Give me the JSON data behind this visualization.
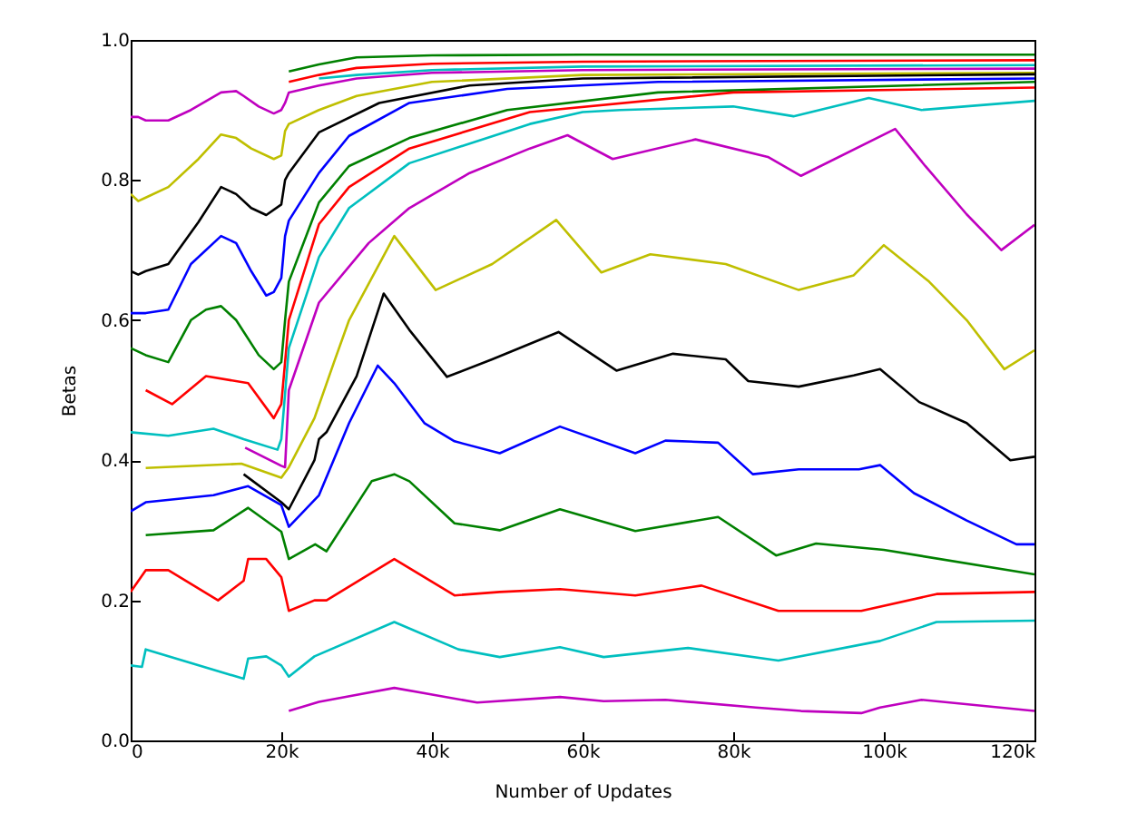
{
  "chart_data": {
    "type": "line",
    "xlabel": "Number of Updates",
    "ylabel": "Betas",
    "xlim": [
      0,
      120000
    ],
    "ylim": [
      0,
      1
    ],
    "xticks": [
      {
        "value": 0,
        "label": "0"
      },
      {
        "value": 20000,
        "label": "20k"
      },
      {
        "value": 40000,
        "label": "40k"
      },
      {
        "value": 60000,
        "label": "60k"
      },
      {
        "value": 80000,
        "label": "80k"
      },
      {
        "value": 100000,
        "label": "100k"
      },
      {
        "value": 120000,
        "label": "120k"
      }
    ],
    "yticks": [
      {
        "value": 0,
        "label": "0.0"
      },
      {
        "value": 0.2,
        "label": "0.2"
      },
      {
        "value": 0.4,
        "label": "0.4"
      },
      {
        "value": 0.6,
        "label": "0.6"
      },
      {
        "value": 0.8,
        "label": "0.8"
      },
      {
        "value": 1,
        "label": "1.0"
      }
    ],
    "grid": false,
    "legend": false,
    "series": [
      {
        "color": "#008000",
        "x": [
          21000,
          25000,
          30000,
          40000,
          60000,
          120000
        ],
        "values": [
          0.955,
          0.965,
          0.975,
          0.978,
          0.979,
          0.979
        ]
      },
      {
        "color": "#ff0000",
        "x": [
          21000,
          25000,
          30000,
          40000,
          60000,
          120000
        ],
        "values": [
          0.94,
          0.95,
          0.96,
          0.966,
          0.969,
          0.971
        ]
      },
      {
        "color": "#00bfbf",
        "x": [
          25000,
          30000,
          40000,
          60000,
          120000
        ],
        "values": [
          0.945,
          0.95,
          0.957,
          0.962,
          0.964
        ]
      },
      {
        "color": "#bf00bf",
        "x": [
          0,
          1000,
          2000,
          5000,
          8000,
          12000,
          14000,
          15000,
          17000,
          19000,
          20000,
          20500,
          21000,
          25000,
          30000,
          40000,
          60000,
          120000
        ],
        "values": [
          0.89,
          0.89,
          0.885,
          0.885,
          0.9,
          0.925,
          0.927,
          0.92,
          0.905,
          0.895,
          0.9,
          0.91,
          0.925,
          0.935,
          0.945,
          0.953,
          0.957,
          0.959
        ]
      },
      {
        "color": "#bfbf00",
        "x": [
          0,
          1000,
          2000,
          5000,
          9000,
          12000,
          14000,
          16000,
          19000,
          20000,
          20500,
          21000,
          25000,
          30000,
          40000,
          60000,
          120000
        ],
        "values": [
          0.78,
          0.77,
          0.775,
          0.79,
          0.83,
          0.865,
          0.86,
          0.845,
          0.83,
          0.835,
          0.87,
          0.88,
          0.9,
          0.92,
          0.94,
          0.95,
          0.953
        ]
      },
      {
        "color": "#000000",
        "x": [
          0,
          1000,
          2000,
          5000,
          9000,
          12000,
          14000,
          16000,
          18000,
          20000,
          20500,
          21000,
          25000,
          33000,
          45000,
          60000,
          120000
        ],
        "values": [
          0.67,
          0.665,
          0.67,
          0.68,
          0.74,
          0.79,
          0.78,
          0.76,
          0.75,
          0.765,
          0.8,
          0.81,
          0.868,
          0.91,
          0.935,
          0.945,
          0.951
        ]
      },
      {
        "color": "#0000ff",
        "x": [
          0,
          2000,
          5000,
          8000,
          12000,
          14000,
          16000,
          18000,
          19000,
          20000,
          20500,
          21000,
          25000,
          29000,
          37000,
          50000,
          70000,
          120000
        ],
        "values": [
          0.61,
          0.61,
          0.615,
          0.68,
          0.72,
          0.71,
          0.67,
          0.635,
          0.64,
          0.66,
          0.72,
          0.742,
          0.81,
          0.863,
          0.91,
          0.93,
          0.94,
          0.945
        ]
      },
      {
        "color": "#008000",
        "x": [
          0,
          2000,
          5000,
          8000,
          10000,
          12000,
          14000,
          17000,
          19000,
          20000,
          20500,
          21000,
          25000,
          29000,
          37000,
          50000,
          70000,
          120000
        ],
        "values": [
          0.56,
          0.55,
          0.54,
          0.6,
          0.615,
          0.62,
          0.6,
          0.55,
          0.53,
          0.54,
          0.6,
          0.655,
          0.768,
          0.82,
          0.86,
          0.9,
          0.925,
          0.94
        ]
      },
      {
        "color": "#ff0000",
        "x": [
          2000,
          5500,
          10000,
          15600,
          19000,
          20000,
          21000,
          25000,
          29000,
          37000,
          53000,
          80000,
          120000
        ],
        "values": [
          0.5,
          0.48,
          0.52,
          0.51,
          0.46,
          0.48,
          0.6,
          0.737,
          0.79,
          0.845,
          0.897,
          0.925,
          0.932
        ]
      },
      {
        "color": "#00bfbf",
        "x": [
          0,
          5000,
          11000,
          15000,
          19500,
          20000,
          21000,
          25000,
          29000,
          37000,
          53000,
          60000,
          65000,
          80000,
          88000,
          98000,
          105000,
          120000
        ],
        "values": [
          0.44,
          0.435,
          0.445,
          0.43,
          0.415,
          0.43,
          0.56,
          0.69,
          0.76,
          0.824,
          0.88,
          0.897,
          0.9,
          0.905,
          0.891,
          0.917,
          0.9,
          0.913
        ]
      },
      {
        "color": "#bf00bf",
        "x": [
          15200,
          20000,
          20500,
          21000,
          25000,
          31600,
          37000,
          45000,
          53000,
          58000,
          64000,
          75000,
          84600,
          89000,
          101500,
          105500,
          111000,
          115600,
          120000
        ],
        "values": [
          0.418,
          0.392,
          0.39,
          0.5,
          0.625,
          0.71,
          0.76,
          0.81,
          0.845,
          0.864,
          0.83,
          0.858,
          0.833,
          0.806,
          0.873,
          0.82,
          0.751,
          0.7,
          0.736
        ]
      },
      {
        "color": "#bfbf00",
        "x": [
          2000,
          14700,
          20000,
          21000,
          24400,
          27000,
          29000,
          35000,
          40500,
          48000,
          56500,
          62500,
          69000,
          79000,
          88700,
          96000,
          100000,
          106000,
          111000,
          116000,
          120000
        ],
        "values": [
          0.389,
          0.395,
          0.375,
          0.39,
          0.46,
          0.54,
          0.6,
          0.72,
          0.643,
          0.68,
          0.743,
          0.668,
          0.694,
          0.68,
          0.643,
          0.664,
          0.707,
          0.655,
          0.6,
          0.53,
          0.557
        ]
      },
      {
        "color": "#000000",
        "x": [
          15000,
          20000,
          21000,
          24400,
          25000,
          26000,
          30000,
          33600,
          37000,
          42000,
          48000,
          56800,
          64500,
          72000,
          79000,
          82000,
          88700,
          96000,
          99500,
          104700,
          111000,
          116800,
          120000
        ],
        "values": [
          0.38,
          0.34,
          0.33,
          0.4,
          0.43,
          0.44,
          0.52,
          0.638,
          0.586,
          0.519,
          0.544,
          0.583,
          0.528,
          0.552,
          0.544,
          0.513,
          0.505,
          0.521,
          0.53,
          0.483,
          0.453,
          0.4,
          0.405
        ]
      },
      {
        "color": "#0000ff",
        "x": [
          0,
          2000,
          11000,
          15600,
          20000,
          21000,
          25000,
          29000,
          32800,
          35000,
          39000,
          43000,
          49000,
          57000,
          67000,
          71000,
          78000,
          82600,
          88700,
          96700,
          99500,
          104000,
          111000,
          117600,
          120000
        ],
        "values": [
          0.327,
          0.34,
          0.35,
          0.363,
          0.336,
          0.305,
          0.35,
          0.453,
          0.535,
          0.51,
          0.453,
          0.427,
          0.41,
          0.448,
          0.41,
          0.428,
          0.425,
          0.38,
          0.387,
          0.387,
          0.393,
          0.353,
          0.314,
          0.28,
          0.28
        ]
      },
      {
        "color": "#008000",
        "x": [
          2000,
          11000,
          15600,
          20000,
          21000,
          24500,
          26000,
          32000,
          35000,
          37000,
          43000,
          49000,
          57000,
          67000,
          78000,
          85700,
          91000,
          100000,
          120000
        ],
        "values": [
          0.293,
          0.3,
          0.332,
          0.298,
          0.259,
          0.28,
          0.27,
          0.37,
          0.38,
          0.37,
          0.31,
          0.3,
          0.33,
          0.299,
          0.319,
          0.264,
          0.281,
          0.272,
          0.237
        ]
      },
      {
        "color": "#ff0000",
        "x": [
          0,
          2000,
          5000,
          11600,
          15000,
          15600,
          18000,
          20000,
          21000,
          24400,
          26000,
          35000,
          43000,
          49000,
          57000,
          67000,
          75800,
          86000,
          97000,
          107000,
          120000
        ],
        "values": [
          0.212,
          0.243,
          0.243,
          0.2,
          0.228,
          0.259,
          0.259,
          0.233,
          0.185,
          0.2,
          0.2,
          0.259,
          0.207,
          0.212,
          0.216,
          0.207,
          0.221,
          0.185,
          0.185,
          0.209,
          0.212
        ]
      },
      {
        "color": "#00bfbf",
        "x": [
          0,
          1500,
          2000,
          15000,
          15600,
          18000,
          20000,
          21000,
          24400,
          35000,
          43500,
          49000,
          57000,
          62800,
          74000,
          86000,
          99500,
          107000,
          120000
        ],
        "values": [
          0.107,
          0.105,
          0.13,
          0.088,
          0.117,
          0.12,
          0.107,
          0.091,
          0.12,
          0.169,
          0.13,
          0.119,
          0.133,
          0.119,
          0.132,
          0.114,
          0.142,
          0.169,
          0.171
        ]
      },
      {
        "color": "#bf00bf",
        "x": [
          21000,
          25000,
          35000,
          46000,
          57000,
          62800,
          71000,
          83000,
          89000,
          97000,
          99500,
          105000,
          120000
        ],
        "values": [
          0.042,
          0.055,
          0.075,
          0.054,
          0.062,
          0.056,
          0.058,
          0.047,
          0.042,
          0.039,
          0.047,
          0.058,
          0.042
        ]
      }
    ]
  }
}
